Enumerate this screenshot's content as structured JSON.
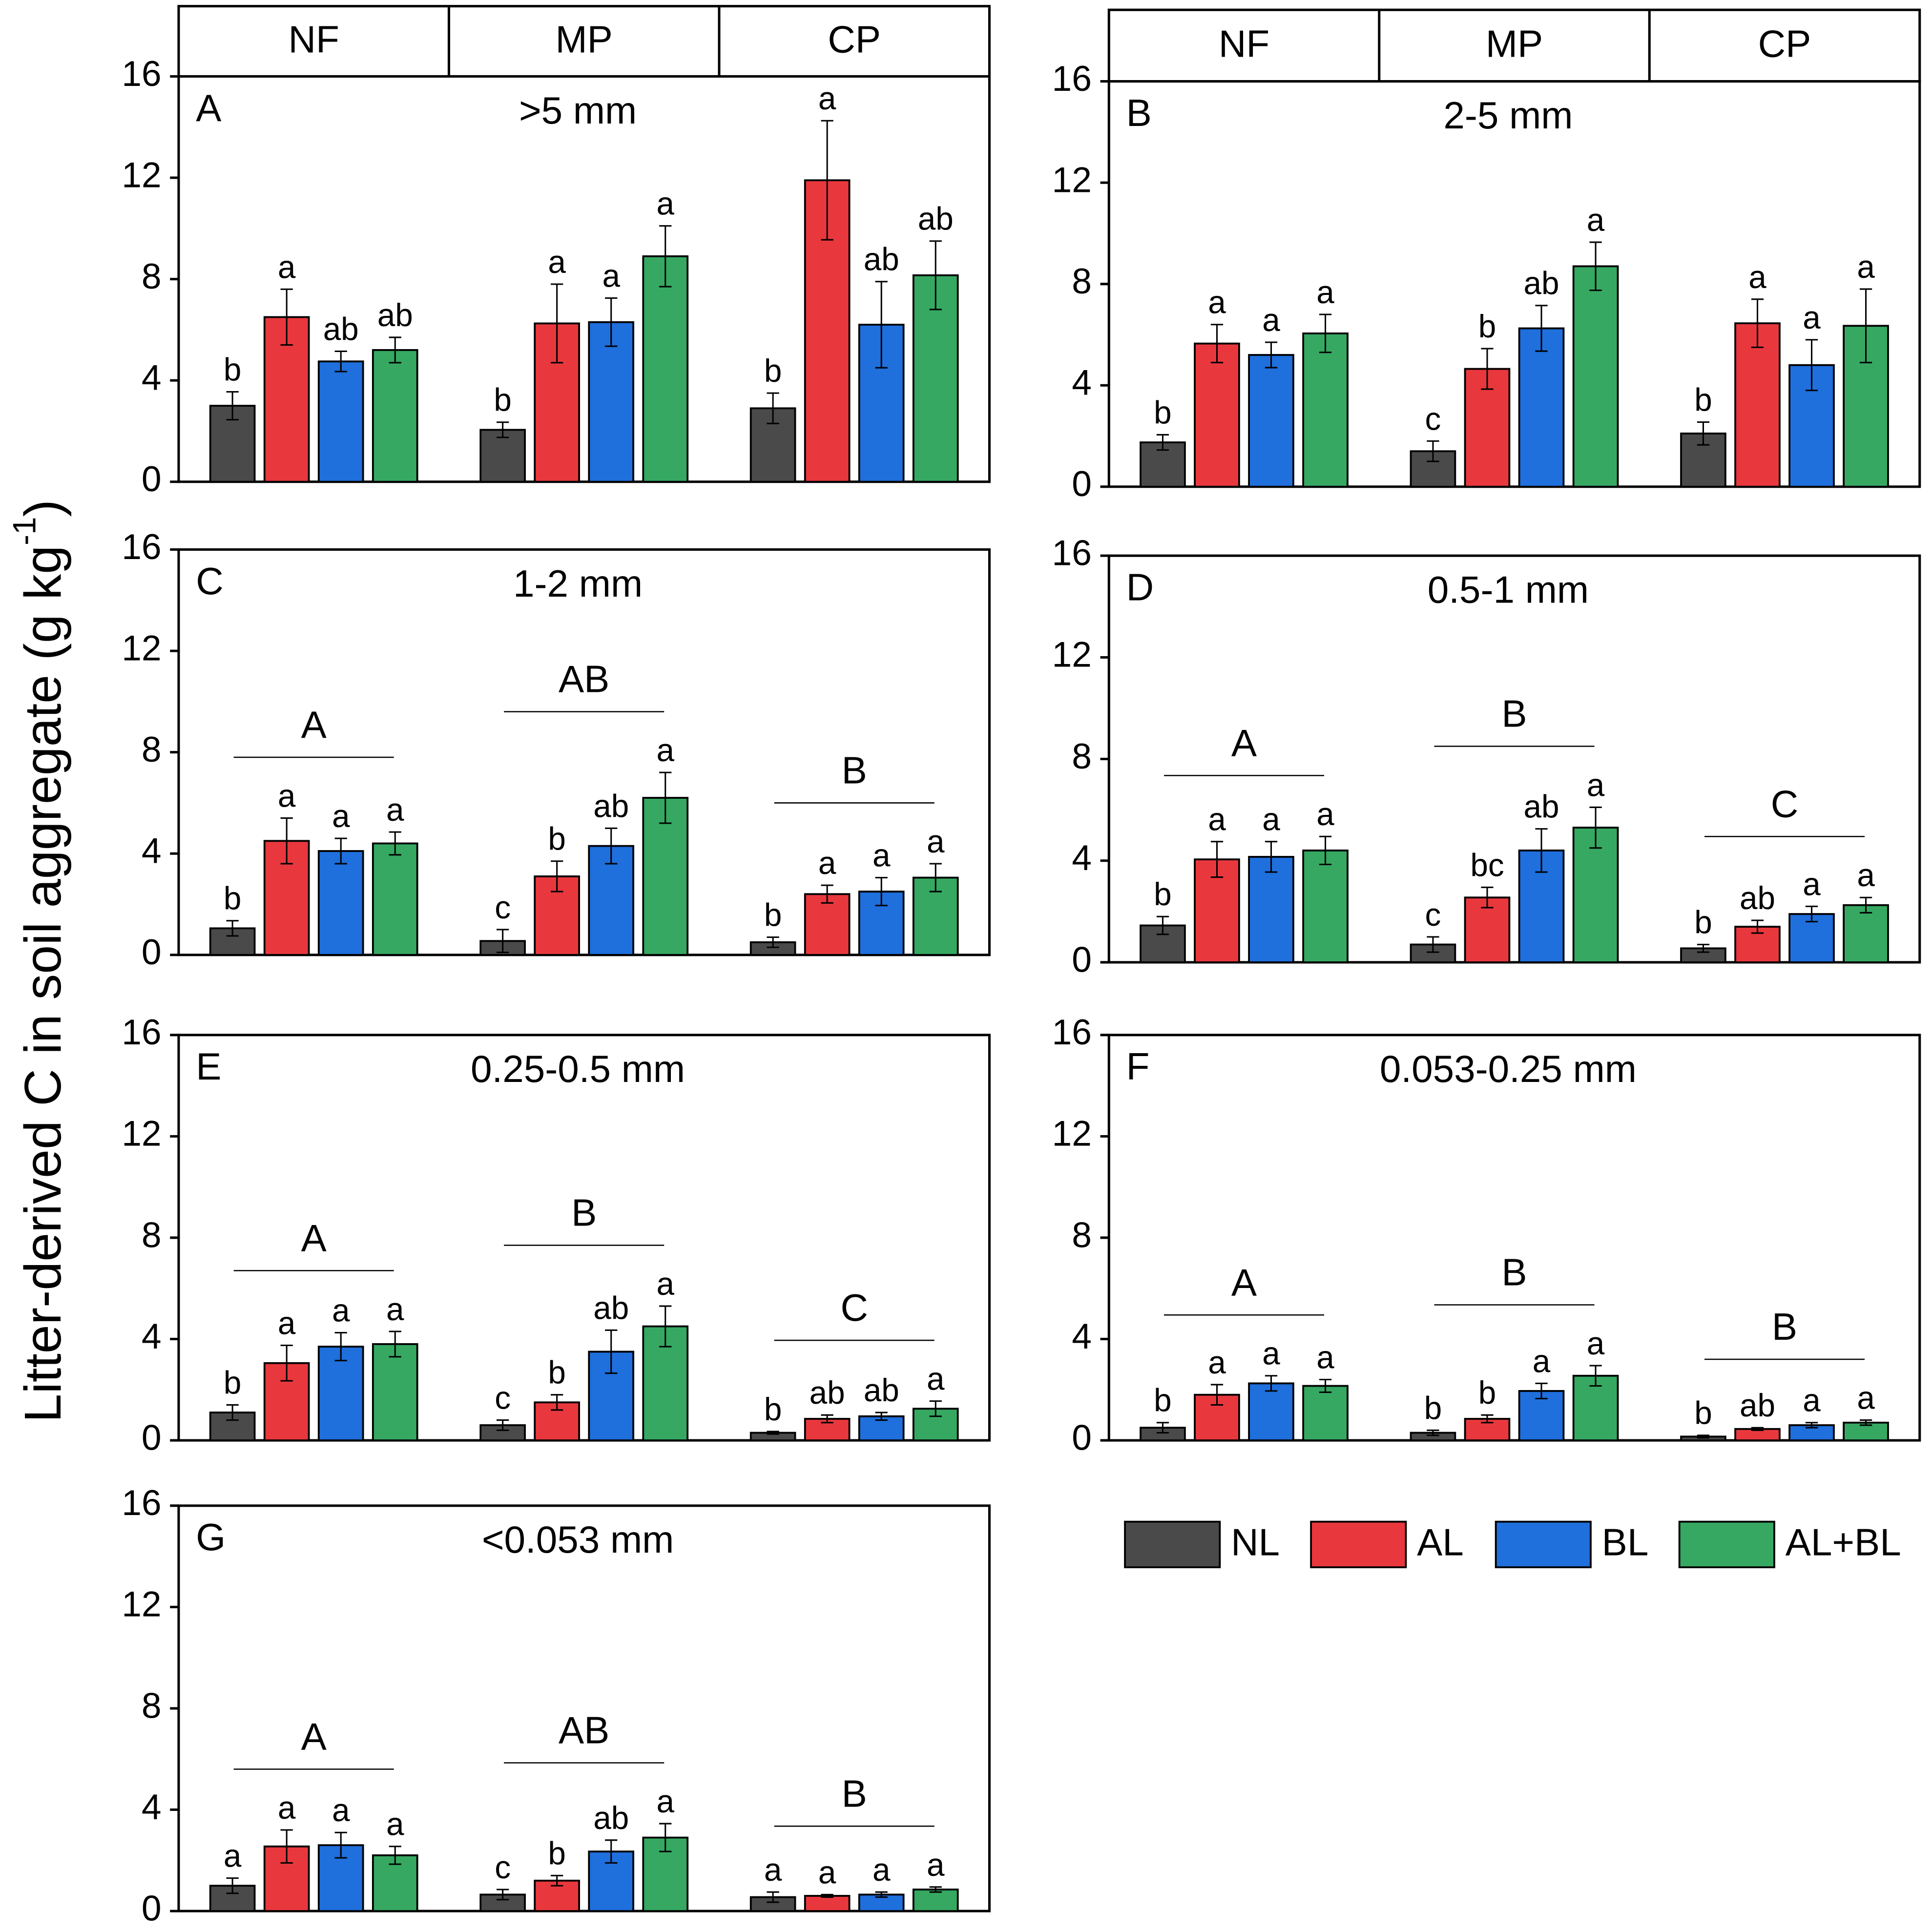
{
  "ylabel": {
    "text": "Litter-derived C in soil aggregate (g kg",
    "sup": "-1",
    "end": ")"
  },
  "chart_data": [
    {
      "type": "bar",
      "panel": "A",
      "title": ">5 mm",
      "categories": [
        "NF",
        "MP",
        "CP"
      ],
      "ylim": [
        0,
        16
      ],
      "yticks": [
        0,
        4,
        8,
        12,
        16
      ],
      "series": [
        {
          "name": "NL",
          "color": "#4a4a4a",
          "values": [
            3.0,
            2.05,
            2.9
          ],
          "errors": [
            0.55,
            0.3,
            0.6
          ],
          "letters": [
            "b",
            "b",
            "b"
          ]
        },
        {
          "name": "AL",
          "color": "#e8383d",
          "values": [
            6.5,
            6.25,
            11.9
          ],
          "errors": [
            1.1,
            1.55,
            2.35
          ],
          "letters": [
            "a",
            "a",
            "a"
          ]
        },
        {
          "name": "BL",
          "color": "#1f6fdc",
          "values": [
            4.75,
            6.3,
            6.2
          ],
          "errors": [
            0.4,
            0.95,
            1.7
          ],
          "letters": [
            "ab",
            "a",
            "ab"
          ]
        },
        {
          "name": "AL+BL",
          "color": "#36a862",
          "values": [
            5.2,
            8.9,
            8.15
          ],
          "errors": [
            0.5,
            1.2,
            1.35
          ],
          "letters": [
            "ab",
            "a",
            "ab"
          ]
        }
      ]
    },
    {
      "type": "bar",
      "panel": "B",
      "title": "2-5 mm",
      "categories": [
        "NF",
        "MP",
        "CP"
      ],
      "ylim": [
        0,
        16
      ],
      "yticks": [
        0,
        4,
        8,
        12,
        16
      ],
      "series": [
        {
          "name": "NL",
          "color": "#4a4a4a",
          "values": [
            1.75,
            1.4,
            2.1
          ],
          "errors": [
            0.3,
            0.4,
            0.45
          ],
          "letters": [
            "b",
            "c",
            "b"
          ]
        },
        {
          "name": "AL",
          "color": "#e8383d",
          "values": [
            5.65,
            4.65,
            6.45
          ],
          "errors": [
            0.75,
            0.8,
            0.95
          ],
          "letters": [
            "a",
            "b",
            "a"
          ]
        },
        {
          "name": "BL",
          "color": "#1f6fdc",
          "values": [
            5.2,
            6.25,
            4.8
          ],
          "errors": [
            0.5,
            0.9,
            1.0
          ],
          "letters": [
            "a",
            "ab",
            "a"
          ]
        },
        {
          "name": "AL+BL",
          "color": "#36a862",
          "values": [
            6.05,
            8.7,
            6.35
          ],
          "errors": [
            0.75,
            0.95,
            1.45
          ],
          "letters": [
            "a",
            "a",
            "a"
          ]
        }
      ]
    },
    {
      "type": "bar",
      "panel": "C",
      "title": "1-2 mm",
      "categories": [
        null,
        null,
        null
      ],
      "group_letters": [
        "A",
        "AB",
        "B"
      ],
      "ylim": [
        0,
        16
      ],
      "yticks": [
        0,
        4,
        8,
        12,
        16
      ],
      "series": [
        {
          "name": "NL",
          "color": "#4a4a4a",
          "values": [
            1.05,
            0.55,
            0.5
          ],
          "errors": [
            0.3,
            0.45,
            0.2
          ],
          "letters": [
            "b",
            "c",
            "b"
          ]
        },
        {
          "name": "AL",
          "color": "#e8383d",
          "values": [
            4.5,
            3.1,
            2.4
          ],
          "errors": [
            0.9,
            0.6,
            0.35
          ],
          "letters": [
            "a",
            "b",
            "a"
          ]
        },
        {
          "name": "BL",
          "color": "#1f6fdc",
          "values": [
            4.1,
            4.3,
            2.5
          ],
          "errors": [
            0.5,
            0.7,
            0.55
          ],
          "letters": [
            "a",
            "ab",
            "a"
          ]
        },
        {
          "name": "AL+BL",
          "color": "#36a862",
          "values": [
            4.4,
            6.2,
            3.05
          ],
          "errors": [
            0.45,
            1.0,
            0.55
          ],
          "letters": [
            "a",
            "a",
            "a"
          ]
        }
      ]
    },
    {
      "type": "bar",
      "panel": "D",
      "title": "0.5-1 mm",
      "categories": [
        null,
        null,
        null
      ],
      "group_letters": [
        "A",
        "B",
        "C"
      ],
      "ylim": [
        0,
        16
      ],
      "yticks": [
        0,
        4,
        8,
        12,
        16
      ],
      "series": [
        {
          "name": "NL",
          "color": "#4a4a4a",
          "values": [
            1.45,
            0.7,
            0.55
          ],
          "errors": [
            0.35,
            0.3,
            0.15
          ],
          "letters": [
            "b",
            "c",
            "b"
          ]
        },
        {
          "name": "AL",
          "color": "#e8383d",
          "values": [
            4.05,
            2.55,
            1.4
          ],
          "errors": [
            0.7,
            0.4,
            0.25
          ],
          "letters": [
            "a",
            "bc",
            "ab"
          ]
        },
        {
          "name": "BL",
          "color": "#1f6fdc",
          "values": [
            4.15,
            4.4,
            1.9
          ],
          "errors": [
            0.6,
            0.85,
            0.3
          ],
          "letters": [
            "a",
            "ab",
            "a"
          ]
        },
        {
          "name": "AL+BL",
          "color": "#36a862",
          "values": [
            4.4,
            5.3,
            2.25
          ],
          "errors": [
            0.55,
            0.8,
            0.3
          ],
          "letters": [
            "a",
            "a",
            "a"
          ]
        }
      ]
    },
    {
      "type": "bar",
      "panel": "E",
      "title": "0.25-0.5 mm",
      "categories": [
        null,
        null,
        null
      ],
      "group_letters": [
        "A",
        "B",
        "C"
      ],
      "ylim": [
        0,
        16
      ],
      "yticks": [
        0,
        4,
        8,
        12,
        16
      ],
      "series": [
        {
          "name": "NL",
          "color": "#4a4a4a",
          "values": [
            1.1,
            0.6,
            0.3
          ],
          "errors": [
            0.3,
            0.2,
            0.05
          ],
          "letters": [
            "b",
            "c",
            "b"
          ]
        },
        {
          "name": "AL",
          "color": "#e8383d",
          "values": [
            3.05,
            1.5,
            0.85
          ],
          "errors": [
            0.7,
            0.3,
            0.15
          ],
          "letters": [
            "a",
            "b",
            "ab"
          ]
        },
        {
          "name": "BL",
          "color": "#1f6fdc",
          "values": [
            3.7,
            3.5,
            0.95
          ],
          "errors": [
            0.55,
            0.85,
            0.15
          ],
          "letters": [
            "a",
            "ab",
            "ab"
          ]
        },
        {
          "name": "AL+BL",
          "color": "#36a862",
          "values": [
            3.8,
            4.5,
            1.25
          ],
          "errors": [
            0.5,
            0.8,
            0.3
          ],
          "letters": [
            "a",
            "a",
            "a"
          ]
        }
      ]
    },
    {
      "type": "bar",
      "panel": "F",
      "title": "0.053-0.25 mm",
      "categories": [
        null,
        null,
        null
      ],
      "group_letters": [
        "A",
        "B",
        "B"
      ],
      "ylim": [
        0,
        16
      ],
      "yticks": [
        0,
        4,
        8,
        12,
        16
      ],
      "series": [
        {
          "name": "NL",
          "color": "#4a4a4a",
          "values": [
            0.5,
            0.3,
            0.15
          ],
          "errors": [
            0.2,
            0.1,
            0.05
          ],
          "letters": [
            "b",
            "b",
            "b"
          ]
        },
        {
          "name": "AL",
          "color": "#e8383d",
          "values": [
            1.8,
            0.85,
            0.45
          ],
          "errors": [
            0.4,
            0.15,
            0.05
          ],
          "letters": [
            "a",
            "b",
            "ab"
          ]
        },
        {
          "name": "BL",
          "color": "#1f6fdc",
          "values": [
            2.25,
            1.95,
            0.6
          ],
          "errors": [
            0.3,
            0.3,
            0.1
          ],
          "letters": [
            "a",
            "a",
            "a"
          ]
        },
        {
          "name": "AL+BL",
          "color": "#36a862",
          "values": [
            2.15,
            2.55,
            0.7
          ],
          "errors": [
            0.25,
            0.4,
            0.1
          ],
          "letters": [
            "a",
            "a",
            "a"
          ]
        }
      ]
    },
    {
      "type": "bar",
      "panel": "G",
      "title": "<0.053 mm",
      "categories": [
        null,
        null,
        null
      ],
      "group_letters": [
        "A",
        "AB",
        "B"
      ],
      "ylim": [
        0,
        16
      ],
      "yticks": [
        0,
        4,
        8,
        12,
        16
      ],
      "series": [
        {
          "name": "NL",
          "color": "#4a4a4a",
          "values": [
            1.0,
            0.65,
            0.55
          ],
          "errors": [
            0.3,
            0.2,
            0.2
          ],
          "letters": [
            "a",
            "c",
            "a"
          ]
        },
        {
          "name": "AL",
          "color": "#e8383d",
          "values": [
            2.55,
            1.2,
            0.6
          ],
          "errors": [
            0.65,
            0.2,
            0.05
          ],
          "letters": [
            "a",
            "b",
            "a"
          ]
        },
        {
          "name": "BL",
          "color": "#1f6fdc",
          "values": [
            2.6,
            2.35,
            0.65
          ],
          "errors": [
            0.5,
            0.45,
            0.1
          ],
          "letters": [
            "a",
            "ab",
            "a"
          ]
        },
        {
          "name": "AL+BL",
          "color": "#36a862",
          "values": [
            2.2,
            2.9,
            0.85
          ],
          "errors": [
            0.35,
            0.55,
            0.1
          ],
          "letters": [
            "a",
            "a",
            "a"
          ]
        }
      ]
    }
  ]
}
